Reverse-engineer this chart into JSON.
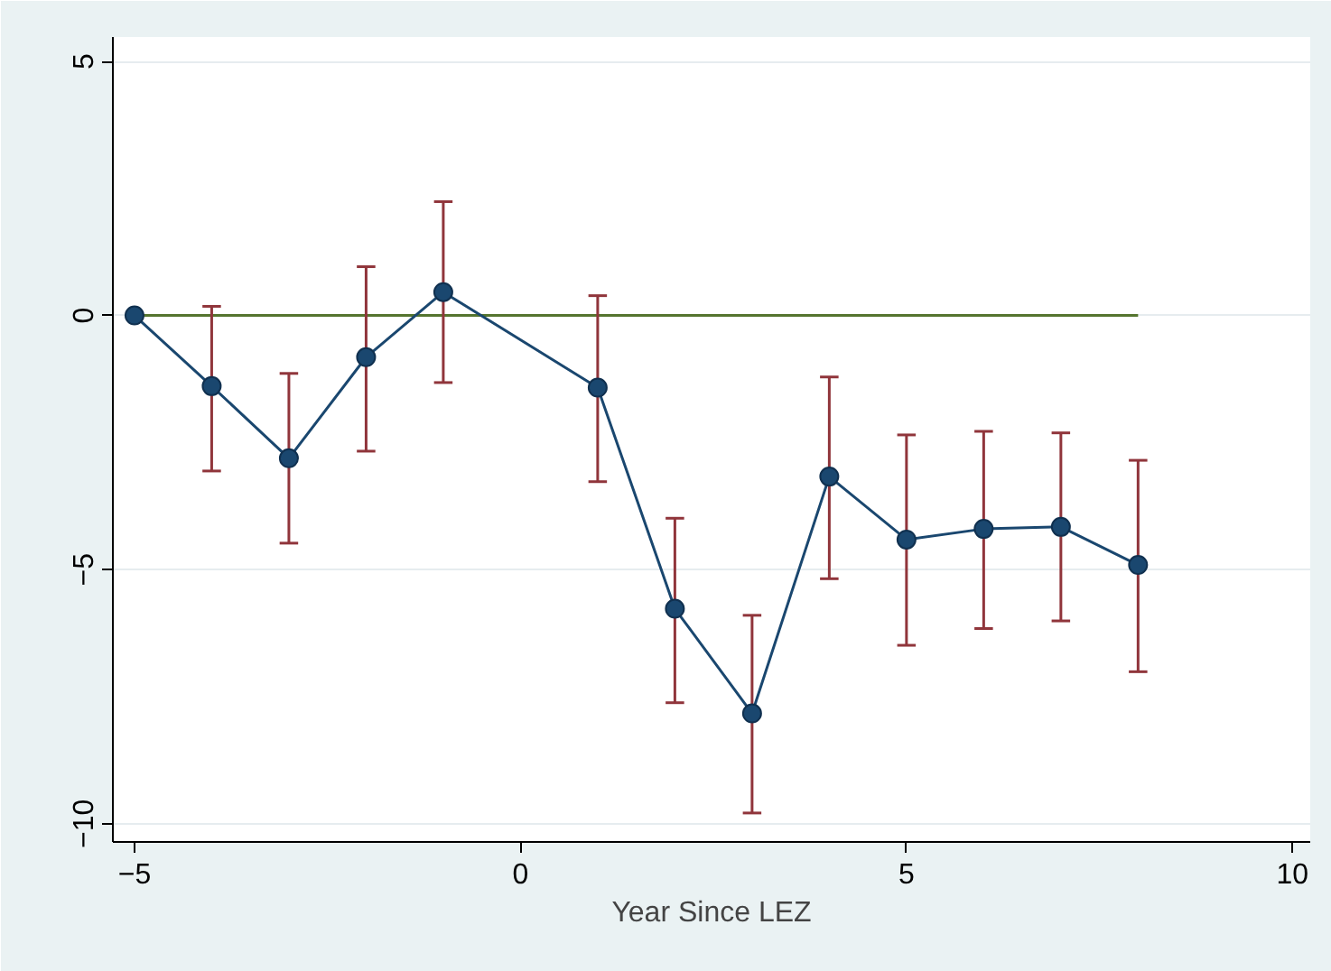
{
  "chart_data": {
    "type": "line",
    "xlabel": "Year Since LEZ",
    "xlim": [
      -5.28,
      10.23
    ],
    "ylim": [
      -10.36,
      5.48
    ],
    "xticks": [
      -5,
      0,
      5,
      10
    ],
    "yticks": [
      -10,
      -5,
      0,
      5
    ],
    "grid": "y",
    "marker": "circle",
    "line_style": "solid",
    "series": [
      {
        "color": "#55752f",
        "x": [
          -5,
          8
        ],
        "values": [
          0,
          0
        ],
        "marker": "none"
      },
      {
        "color": "#1a476f",
        "x": [
          -5,
          -4,
          -3,
          -2,
          -1,
          1,
          2,
          3,
          4,
          5,
          6,
          7,
          8
        ],
        "values": [
          0,
          -1.39,
          -2.81,
          -0.82,
          0.46,
          -1.42,
          -5.77,
          -7.83,
          -3.17,
          -4.41,
          -4.2,
          -4.16,
          -4.91
        ],
        "errors": [
          null,
          [
            -3.06,
            0.18
          ],
          [
            -4.48,
            -1.14
          ],
          [
            -2.67,
            0.96
          ],
          [
            -1.32,
            2.24
          ],
          [
            -3.27,
            0.39
          ],
          [
            -7.62,
            -3.99
          ],
          [
            -9.79,
            -5.9
          ],
          [
            -5.18,
            -1.21
          ],
          [
            -6.49,
            -2.35
          ],
          [
            -6.16,
            -2.28
          ],
          [
            -6.01,
            -2.31
          ],
          [
            -7.01,
            -2.85
          ]
        ]
      }
    ]
  }
}
